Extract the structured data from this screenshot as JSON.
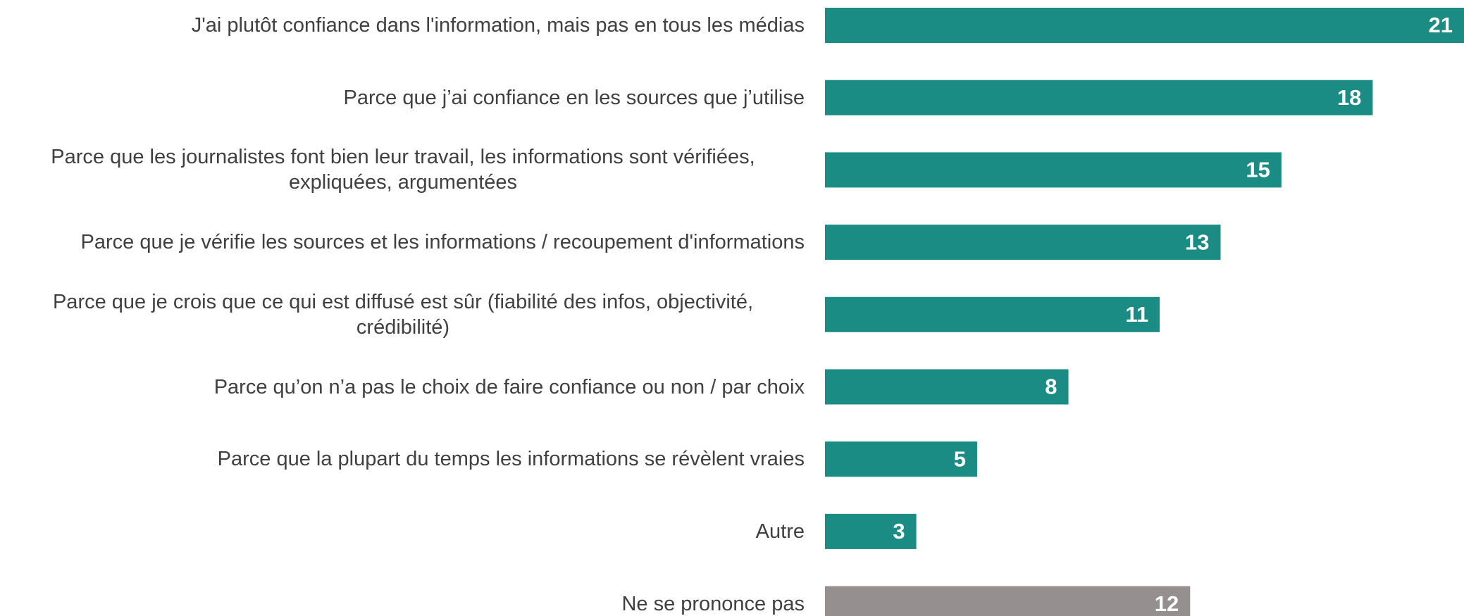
{
  "chart_data": {
    "type": "barh",
    "categories": [
      "J'ai plutôt confiance dans l'information, mais pas en tous les médias",
      "Parce que j’ai confiance en les sources que j’utilise",
      "Parce que les journalistes font bien leur travail, les informations sont vérifiées,\nexpliquées, argumentées",
      "Parce que je vérifie les sources et les informations / recoupement d'informations",
      "Parce que je crois que ce qui est diffusé est sûr (fiabilité des infos, objectivité,\ncrédibilité)",
      "Parce qu’on n’a pas le choix de faire confiance ou non / par choix",
      "Parce que la plupart du temps les informations se révèlent vraies",
      "Autre",
      "Ne se prononce pas"
    ],
    "values": [
      21,
      18,
      15,
      13,
      11,
      8,
      5,
      3,
      12
    ],
    "colors": [
      "#1a8c84",
      "#1a8c84",
      "#1a8c84",
      "#1a8c84",
      "#1a8c84",
      "#1a8c84",
      "#1a8c84",
      "#1a8c84",
      "#968f8f"
    ],
    "xlim": [
      0,
      21
    ]
  }
}
